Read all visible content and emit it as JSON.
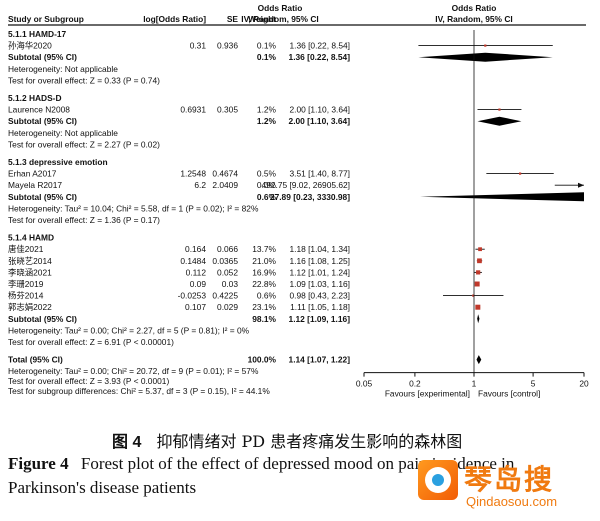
{
  "header": {
    "col_study": "Study or Subgroup",
    "col_logor": "log[Odds Ratio]",
    "col_se": "SE",
    "col_weight": "Weight",
    "col_or_title": "Odds Ratio",
    "col_or_sub": "IV, Random, 95% CI",
    "plot_title": "Odds Ratio",
    "plot_sub": "IV, Random, 95% CI"
  },
  "chart_data": {
    "type": "forest",
    "title": "Odds Ratio",
    "subtitle": "IV, Random, 95% CI",
    "x_scale": "log",
    "xlim": [
      0.05,
      20
    ],
    "x_ticks": [
      "0.05",
      "0.2",
      "1",
      "5",
      "20"
    ],
    "x_tick_values": [
      0.05,
      0.2,
      1,
      5,
      20
    ],
    "null_value": 1,
    "favours_left": "Favours [experimental]",
    "favours_right": "Favours [control]",
    "groups": [
      {
        "name": "5.1.1 HAMD-17",
        "studies": [
          {
            "study": "孙海华2020",
            "log_or": "0.31",
            "se": "0.936",
            "weight": "0.1%",
            "or_ci": "1.36 [0.22, 8.54]",
            "or": 1.36,
            "lo": 0.22,
            "hi": 8.54
          }
        ],
        "subtotal": {
          "label": "Subtotal (95% CI)",
          "weight": "0.1%",
          "or_ci": "1.36 [0.22, 8.54]",
          "or": 1.36,
          "lo": 0.22,
          "hi": 8.54
        },
        "heterogeneity": "Heterogeneity: Not applicable",
        "overall_effect": "Test for overall effect: Z = 0.33 (P = 0.74)"
      },
      {
        "name": "5.1.2 HADS-D",
        "studies": [
          {
            "study": "Laurence N2008",
            "log_or": "0.6931",
            "se": "0.305",
            "weight": "1.2%",
            "or_ci": "2.00 [1.10, 3.64]",
            "or": 2.0,
            "lo": 1.1,
            "hi": 3.64
          }
        ],
        "subtotal": {
          "label": "Subtotal (95% CI)",
          "weight": "1.2%",
          "or_ci": "2.00 [1.10, 3.64]",
          "or": 2.0,
          "lo": 1.1,
          "hi": 3.64
        },
        "heterogeneity": "Heterogeneity: Not applicable",
        "overall_effect": "Test for overall effect: Z = 2.27 (P = 0.02)"
      },
      {
        "name": "5.1.3 depressive emotion",
        "studies": [
          {
            "study": "Erhan A2017",
            "log_or": "1.2548",
            "se": "0.4674",
            "weight": "0.5%",
            "or_ci": "3.51 [1.40, 8.77]",
            "or": 3.51,
            "lo": 1.4,
            "hi": 8.77
          },
          {
            "study": "Mayela R2017",
            "log_or": "6.2",
            "se": "2.0409",
            "weight": "0.0%",
            "or_ci": "492.75 [9.02, 26905.62]",
            "or": 492.75,
            "lo": 9.02,
            "hi": 26905.62
          }
        ],
        "subtotal": {
          "label": "Subtotal (95% CI)",
          "weight": "0.6%",
          "or_ci": "27.89 [0.23, 3330.98]",
          "or": 27.89,
          "lo": 0.23,
          "hi": 3330.98
        },
        "heterogeneity": "Heterogeneity: Tau² = 10.04; Chi² = 5.58, df = 1 (P = 0.02); I² = 82%",
        "overall_effect": "Test for overall effect: Z = 1.36 (P = 0.17)"
      },
      {
        "name": "5.1.4 HAMD",
        "studies": [
          {
            "study": "唐佳2021",
            "log_or": "0.164",
            "se": "0.066",
            "weight": "13.7%",
            "or_ci": "1.18 [1.04, 1.34]",
            "or": 1.18,
            "lo": 1.04,
            "hi": 1.34
          },
          {
            "study": "张晓艺2014",
            "log_or": "0.1484",
            "se": "0.0365",
            "weight": "21.0%",
            "or_ci": "1.16 [1.08, 1.25]",
            "or": 1.16,
            "lo": 1.08,
            "hi": 1.25
          },
          {
            "study": "李晓涵2021",
            "log_or": "0.112",
            "se": "0.052",
            "weight": "16.9%",
            "or_ci": "1.12 [1.01, 1.24]",
            "or": 1.12,
            "lo": 1.01,
            "hi": 1.24
          },
          {
            "study": "李珊2019",
            "log_or": "0.09",
            "se": "0.03",
            "weight": "22.8%",
            "or_ci": "1.09 [1.03, 1.16]",
            "or": 1.09,
            "lo": 1.03,
            "hi": 1.16
          },
          {
            "study": "杨芬2014",
            "log_or": "-0.0253",
            "se": "0.4225",
            "weight": "0.6%",
            "or_ci": "0.98 [0.43, 2.23]",
            "or": 0.98,
            "lo": 0.43,
            "hi": 2.23
          },
          {
            "study": "郭志娟2022",
            "log_or": "0.107",
            "se": "0.029",
            "weight": "23.1%",
            "or_ci": "1.11 [1.05, 1.18]",
            "or": 1.11,
            "lo": 1.05,
            "hi": 1.18
          }
        ],
        "subtotal": {
          "label": "Subtotal (95% CI)",
          "weight": "98.1%",
          "or_ci": "1.12 [1.09, 1.16]",
          "or": 1.12,
          "lo": 1.09,
          "hi": 1.16
        },
        "heterogeneity": "Heterogeneity: Tau² = 0.00; Chi² = 2.27, df = 5 (P = 0.81); I² = 0%",
        "overall_effect": "Test for overall effect: Z = 6.91 (P < 0.00001)"
      }
    ],
    "total": {
      "label": "Total (95% CI)",
      "weight": "100.0%",
      "or_ci": "1.14 [1.07, 1.22]",
      "or": 1.14,
      "lo": 1.07,
      "hi": 1.22,
      "heterogeneity": "Heterogeneity: Tau² = 0.00; Chi² = 20.72, df = 9 (P = 0.01); I² = 57%",
      "overall_effect": "Test for overall effect: Z = 3.93 (P < 0.0001)",
      "subgroup_diff": "Test for subgroup differences: Chi² = 5.37, df = 3 (P = 0.15), I² = 44.1%"
    },
    "colors": {
      "study_marker": "#c0392b",
      "diamond": "#000000",
      "line": "#000000"
    }
  },
  "caption": {
    "cn_label": "图 4",
    "cn_text": "抑郁情绪对 PD 患者疼痛发生影响的森林图",
    "en_label": "Figure 4",
    "en_text": "Forest plot of the effect of depressed mood on pain incidence in Parkinson's disease patients"
  },
  "watermark": {
    "cn": "琴岛搜",
    "url": "Qindaosou.com"
  }
}
